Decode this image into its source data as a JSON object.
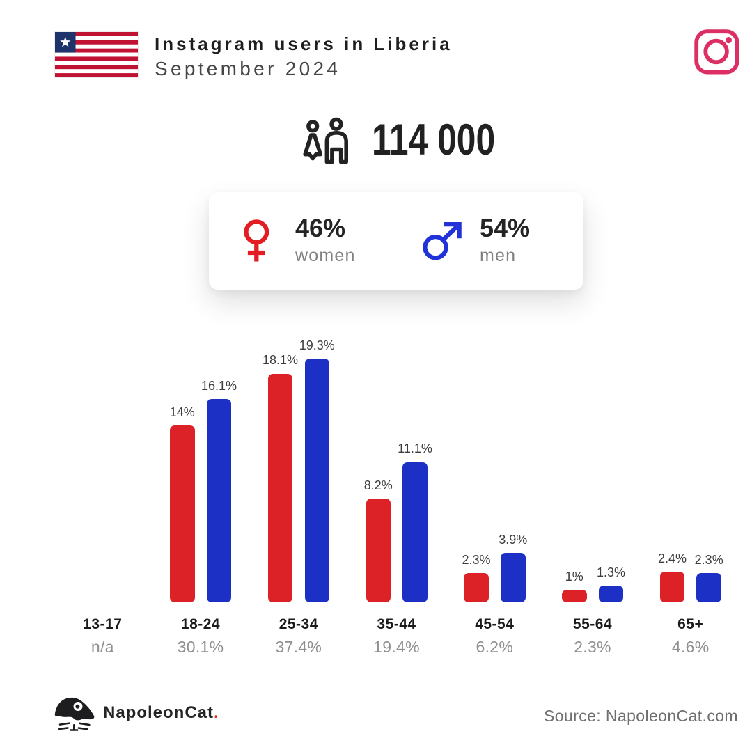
{
  "header": {
    "title": "Instagram users in Liberia",
    "subtitle": "September 2024",
    "flag": {
      "name": "Liberia flag",
      "stripe_red": "#c01334",
      "stripe_white": "#ffffff",
      "canton_blue": "#1f336b",
      "star_white": "#ffffff"
    },
    "instagram_icon_color": "#dc2f63"
  },
  "total": {
    "users_label": "114 000",
    "icon_color": "#222222"
  },
  "gender_card": {
    "female": {
      "percent": "46%",
      "label": "women",
      "symbol_color": "#e21d24"
    },
    "male": {
      "percent": "54%",
      "label": "men",
      "symbol_color": "#2133d8"
    }
  },
  "chart_data": {
    "type": "bar",
    "categories": [
      "13-17",
      "18-24",
      "25-34",
      "35-44",
      "45-54",
      "55-64",
      "65+"
    ],
    "group_totals": [
      "n/a",
      "30.1%",
      "37.4%",
      "19.4%",
      "6.2%",
      "2.3%",
      "4.6%"
    ],
    "series": [
      {
        "name": "women",
        "color": "#dc2127",
        "values": [
          null,
          14,
          18.1,
          8.2,
          2.3,
          1,
          2.4
        ],
        "labels": [
          "",
          "14%",
          "18.1%",
          "8.2%",
          "2.3%",
          "1%",
          "2.4%"
        ]
      },
      {
        "name": "men",
        "color": "#1d30c6",
        "values": [
          null,
          16.1,
          19.3,
          11.1,
          3.9,
          1.3,
          2.3
        ],
        "labels": [
          "",
          "16.1%",
          "19.3%",
          "11.1%",
          "3.9%",
          "1.3%",
          "2.3%"
        ]
      }
    ],
    "unit": "%",
    "ylim": [
      0,
      20
    ],
    "grid": false,
    "legend": false
  },
  "footer": {
    "brand_text": "NapoleonCat",
    "brand_dot": ".",
    "brand_dot_color": "#e12d26",
    "source_text": "Source: NapoleonCat.com"
  }
}
